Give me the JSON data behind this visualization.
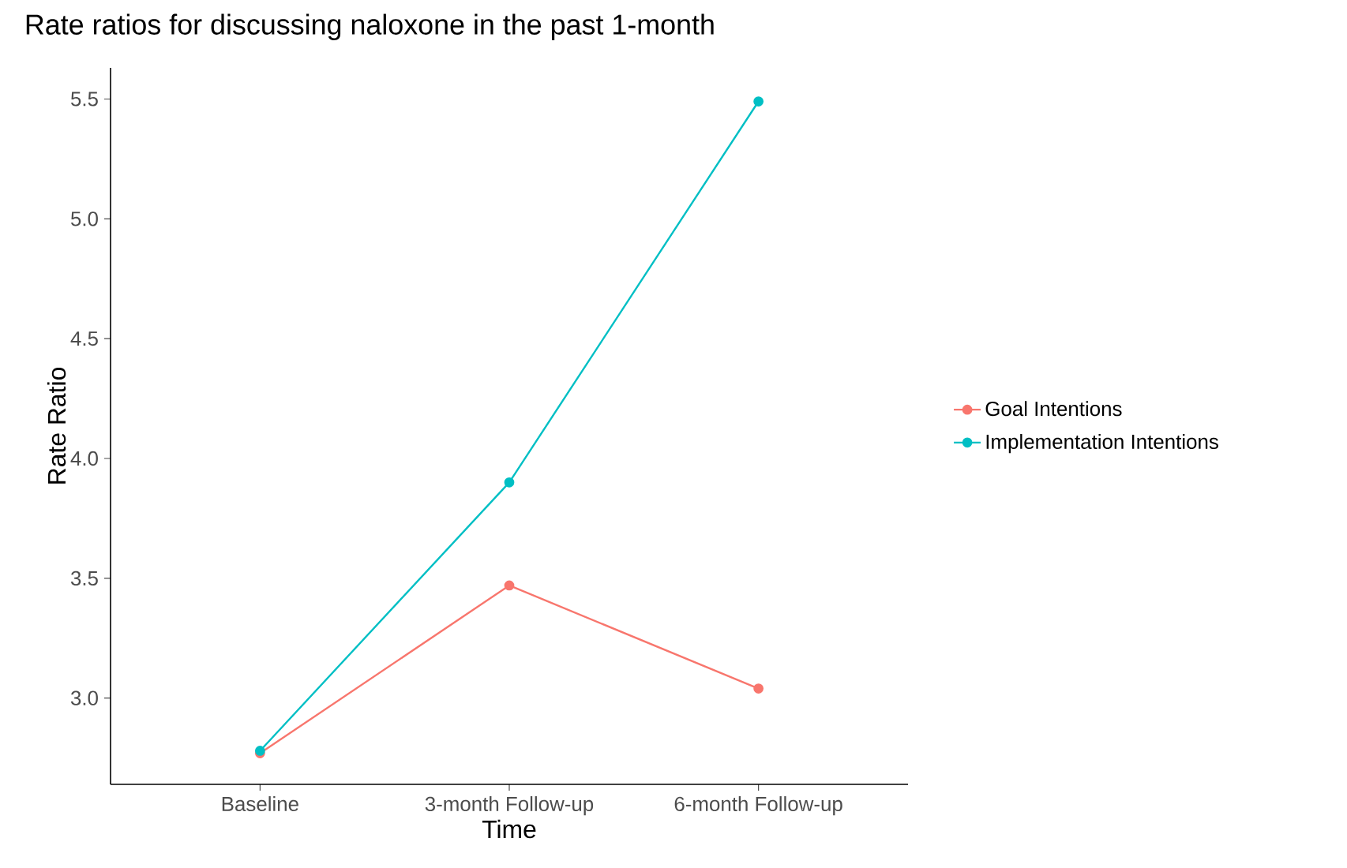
{
  "chart_data": {
    "type": "line",
    "title": "Rate ratios for discussing naloxone in the past 1-month",
    "xlabel": "Time",
    "ylabel": "Rate Ratio",
    "categories": [
      "Baseline",
      "3-month Follow-up",
      "6-month Follow-up"
    ],
    "series": [
      {
        "name": "Goal Intentions",
        "color": "#f8766d",
        "values": [
          2.77,
          3.47,
          3.04
        ]
      },
      {
        "name": "Implementation Intentions",
        "color": "#00bfc4",
        "values": [
          2.78,
          3.9,
          5.49
        ]
      }
    ],
    "ylim": [
      2.64,
      5.63
    ],
    "yticks": [
      {
        "value": 3,
        "label": "3.0"
      },
      3.5,
      {
        "value": 4,
        "label": "4.0"
      },
      4.5,
      {
        "value": 5,
        "label": "5.0"
      },
      5.5
    ],
    "grid": false,
    "legend": "right",
    "marker": "circle",
    "line_style": "solid"
  }
}
